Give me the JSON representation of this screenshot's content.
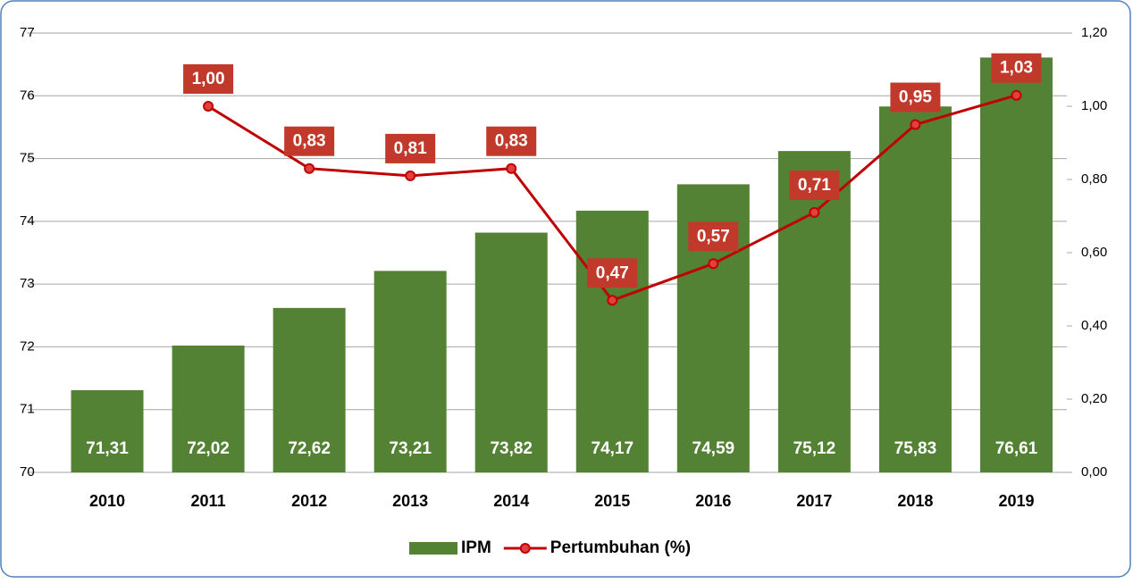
{
  "chart_data": {
    "type": "combo",
    "categories": [
      "2010",
      "2011",
      "2012",
      "2013",
      "2014",
      "2015",
      "2016",
      "2017",
      "2018",
      "2019"
    ],
    "series": [
      {
        "name": "IPM",
        "type": "bar",
        "color": "#548235",
        "values": [
          71.31,
          72.02,
          72.62,
          73.21,
          73.82,
          74.17,
          74.59,
          75.12,
          75.83,
          76.61
        ],
        "value_labels": [
          "71,31",
          "72,02",
          "72,62",
          "73,21",
          "73,82",
          "74,17",
          "74,59",
          "75,12",
          "75,83",
          "76,61"
        ]
      },
      {
        "name": "Pertumbuhan (%)",
        "type": "line",
        "color": "#c00000",
        "axis": "y2",
        "values": [
          null,
          1.0,
          0.83,
          0.81,
          0.83,
          0.47,
          0.57,
          0.71,
          0.95,
          1.03
        ],
        "value_labels": [
          null,
          "1,00",
          "0,83",
          "0,81",
          "0,83",
          "0,47",
          "0,57",
          "0,71",
          "0,95",
          "1,03"
        ]
      }
    ],
    "ylim": [
      70,
      77
    ],
    "yticks": [
      70,
      71,
      72,
      73,
      74,
      75,
      76,
      77
    ],
    "y2lim": [
      0,
      1.2
    ],
    "y2ticks": [
      {
        "value": 0,
        "label": "0,00"
      },
      {
        "value": 0.2,
        "label": "0,20"
      },
      {
        "value": 0.4,
        "label": "0,40"
      },
      {
        "value": 0.6,
        "label": "0,60"
      },
      {
        "value": 0.8,
        "label": "0,80"
      },
      {
        "value": 1.0,
        "label": "1,00"
      },
      {
        "value": 1.2,
        "label": "1,20"
      }
    ],
    "grid": true,
    "legend": "bottom"
  }
}
